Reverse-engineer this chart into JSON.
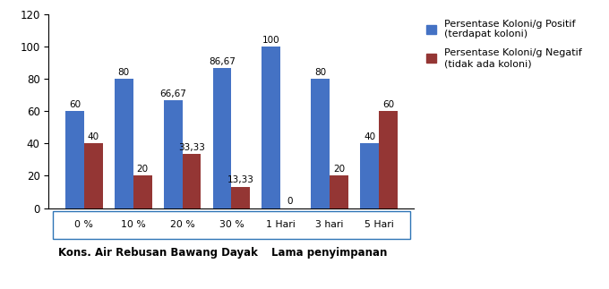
{
  "categories": [
    "0 %",
    "10 %",
    "20 %",
    "30 %",
    "1 Hari",
    "3 hari",
    "5 Hari"
  ],
  "positif": [
    60,
    80,
    66.67,
    86.67,
    100,
    80,
    40
  ],
  "negatif": [
    40,
    20,
    33.33,
    13.33,
    0,
    20,
    60
  ],
  "bar_color_positif": "#4472C4",
  "bar_color_negatif": "#943634",
  "ylim": [
    0,
    120
  ],
  "yticks": [
    0,
    20,
    40,
    60,
    80,
    100,
    120
  ],
  "legend_positif": "Persentase Koloni/g Positif\n(terdapat koloni)",
  "legend_negatif": "Persentase Koloni/g Negatif\n(tidak ada koloni)",
  "xlabel_left": "Kons. Air Rebusan Bawang Dayak",
  "xlabel_right": "Lama penyimpanan",
  "group1_indices": [
    0,
    1,
    2,
    3
  ],
  "group2_indices": [
    4,
    5,
    6
  ],
  "bar_width": 0.38,
  "label_map": {
    "60": "60",
    "80": "80",
    "66.67": "66,67",
    "86.67": "86,67",
    "100": "100",
    "40": "40",
    "20": "20",
    "33.33": "33,33",
    "13.33": "13,33",
    "0": "0"
  },
  "background_color": "#ffffff",
  "figsize": [
    6.8,
    3.23
  ],
  "dpi": 100
}
